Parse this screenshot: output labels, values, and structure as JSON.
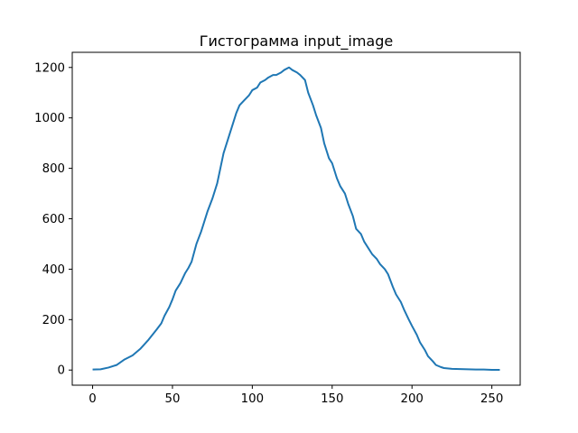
{
  "chart_data": {
    "type": "line",
    "title": "Гистограмма input_image",
    "xlabel": "",
    "ylabel": "",
    "xlim": [
      -12.75,
      267.75
    ],
    "ylim": [
      -60,
      1260
    ],
    "xticks": [
      0,
      50,
      100,
      150,
      200,
      250
    ],
    "yticks": [
      0,
      200,
      400,
      600,
      800,
      1000,
      1200
    ],
    "grid": false,
    "legend": "none",
    "line_color": "#1f77b4",
    "series": [
      {
        "x": [
          0,
          5,
          10,
          15,
          20,
          25,
          30,
          35,
          40,
          43,
          45,
          48,
          50,
          52,
          55,
          58,
          60,
          62,
          65,
          68,
          70,
          72,
          75,
          78,
          80,
          82,
          85,
          88,
          90,
          92,
          95,
          98,
          100,
          103,
          105,
          108,
          110,
          113,
          115,
          118,
          120,
          123,
          125,
          128,
          130,
          133,
          135,
          138,
          140,
          143,
          145,
          148,
          150,
          153,
          155,
          158,
          160,
          163,
          165,
          168,
          170,
          173,
          175,
          178,
          180,
          183,
          185,
          188,
          190,
          193,
          195,
          198,
          200,
          203,
          205,
          208,
          210,
          213,
          215,
          218,
          220,
          225,
          230,
          235,
          240,
          245,
          250,
          255
        ],
        "y": [
          2,
          3,
          10,
          20,
          42,
          58,
          85,
          120,
          160,
          185,
          215,
          250,
          280,
          315,
          345,
          385,
          405,
          430,
          500,
          550,
          590,
          630,
          680,
          740,
          800,
          860,
          920,
          980,
          1020,
          1050,
          1070,
          1090,
          1110,
          1120,
          1140,
          1150,
          1160,
          1170,
          1170,
          1180,
          1190,
          1200,
          1190,
          1180,
          1170,
          1150,
          1100,
          1050,
          1010,
          960,
          900,
          840,
          820,
          760,
          730,
          700,
          660,
          610,
          560,
          540,
          510,
          480,
          460,
          440,
          420,
          400,
          380,
          330,
          300,
          270,
          240,
          200,
          175,
          140,
          110,
          80,
          55,
          35,
          20,
          12,
          8,
          5,
          4,
          3,
          2,
          2,
          1,
          1
        ]
      }
    ]
  }
}
